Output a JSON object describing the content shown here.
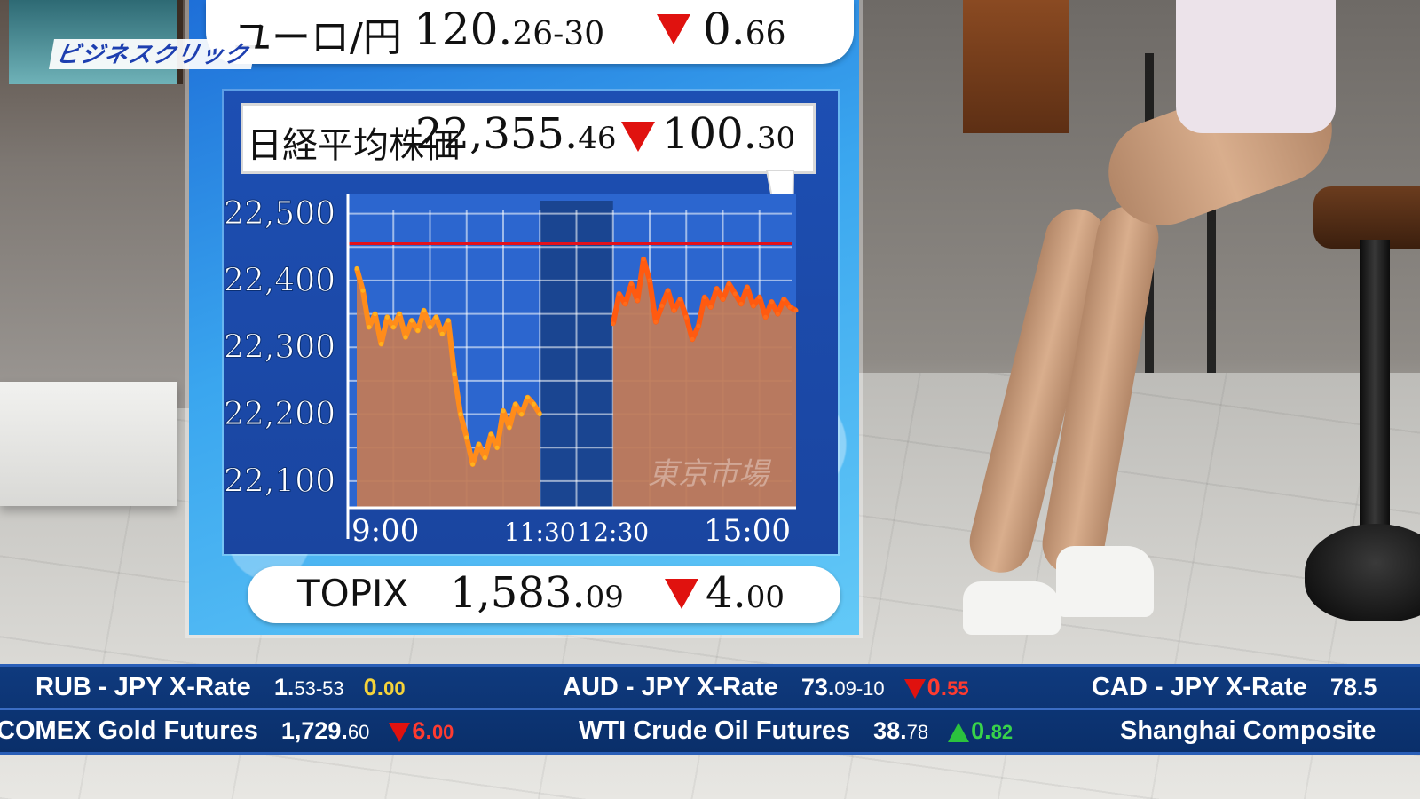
{
  "logo": "ビジネスクリック",
  "fx": {
    "label": "ユーロ/円",
    "value_main": "120.",
    "value_small": "26-30",
    "change_main": "0.",
    "change_small": "66",
    "direction": "down"
  },
  "nikkei": {
    "label": "日経平均株価",
    "value_main": "22,355.",
    "value_small": "46",
    "change_main": "100.",
    "change_small": "30",
    "direction": "down"
  },
  "topix": {
    "label": "TOPIX",
    "value_main": "1,583.",
    "value_small": "09",
    "change_main": "4.",
    "change_small": "00",
    "direction": "down"
  },
  "chart_data": {
    "type": "area",
    "title": "日経平均株価",
    "watermark": "東京市場",
    "x_ticks": [
      "9:00",
      "11:30",
      "12:30",
      "15:00"
    ],
    "y_ticks": [
      "22,500",
      "22,400",
      "22,300",
      "22,200",
      "22,100"
    ],
    "y_tick_values": [
      22500,
      22400,
      22300,
      22200,
      22100
    ],
    "ylim": [
      22060,
      22530
    ],
    "reference_line": 22455,
    "lunch_break": [
      "11:30",
      "12:30"
    ],
    "grid": true,
    "series": [
      {
        "session": "morning",
        "x": [
          "9:00",
          "9:05",
          "9:10",
          "9:15",
          "9:20",
          "9:25",
          "9:30",
          "9:35",
          "9:40",
          "9:45",
          "9:50",
          "9:55",
          "10:00",
          "10:05",
          "10:10",
          "10:15",
          "10:20",
          "10:25",
          "10:30",
          "10:35",
          "10:40",
          "10:45",
          "10:50",
          "10:55",
          "11:00",
          "11:05",
          "11:10",
          "11:15",
          "11:20",
          "11:25",
          "11:30"
        ],
        "y": [
          22418,
          22385,
          22330,
          22350,
          22305,
          22345,
          22330,
          22350,
          22315,
          22340,
          22325,
          22355,
          22330,
          22345,
          22320,
          22340,
          22260,
          22200,
          22165,
          22125,
          22155,
          22135,
          22170,
          22150,
          22205,
          22180,
          22215,
          22200,
          22225,
          22215,
          22200
        ]
      },
      {
        "session": "afternoon",
        "x": [
          "12:30",
          "12:35",
          "12:40",
          "12:45",
          "12:50",
          "12:55",
          "13:00",
          "13:05",
          "13:10",
          "13:15",
          "13:20",
          "13:25",
          "13:30",
          "13:35",
          "13:40",
          "13:45",
          "13:50",
          "13:55",
          "14:00",
          "14:05",
          "14:10",
          "14:15",
          "14:20",
          "14:25",
          "14:30",
          "14:35",
          "14:40",
          "14:45",
          "14:50",
          "14:55",
          "15:00"
        ],
        "y": [
          22335,
          22380,
          22365,
          22395,
          22370,
          22432,
          22400,
          22338,
          22362,
          22385,
          22355,
          22372,
          22345,
          22312,
          22332,
          22375,
          22360,
          22388,
          22372,
          22395,
          22380,
          22365,
          22390,
          22362,
          22375,
          22345,
          22368,
          22350,
          22372,
          22360,
          22355
        ]
      }
    ]
  },
  "ticker": {
    "row1": [
      {
        "name": "RUB - JPY X-Rate",
        "value_main": "1.",
        "value_small": "53-53",
        "change_main": "0.",
        "change_small": "00",
        "direction": "flat"
      },
      {
        "name": "AUD - JPY X-Rate",
        "value_main": "73.",
        "value_small": "09-10",
        "change_main": "0.",
        "change_small": "55",
        "direction": "down"
      },
      {
        "name": "CAD - JPY X-Rate",
        "value_main": "78.5",
        "value_small": "",
        "change_main": "",
        "change_small": "",
        "direction": "none"
      }
    ],
    "row2": [
      {
        "name": "COMEX Gold Futures",
        "value_main": "1,729.",
        "value_small": "60",
        "change_main": "6.",
        "change_small": "00",
        "direction": "down"
      },
      {
        "name": "WTI Crude Oil Futures",
        "value_main": "38.",
        "value_small": "78",
        "change_main": "0.",
        "change_small": "82",
        "direction": "up"
      },
      {
        "name": "Shanghai Composite",
        "value_main": "",
        "value_small": "",
        "change_main": "",
        "change_small": "",
        "direction": "none"
      }
    ]
  }
}
